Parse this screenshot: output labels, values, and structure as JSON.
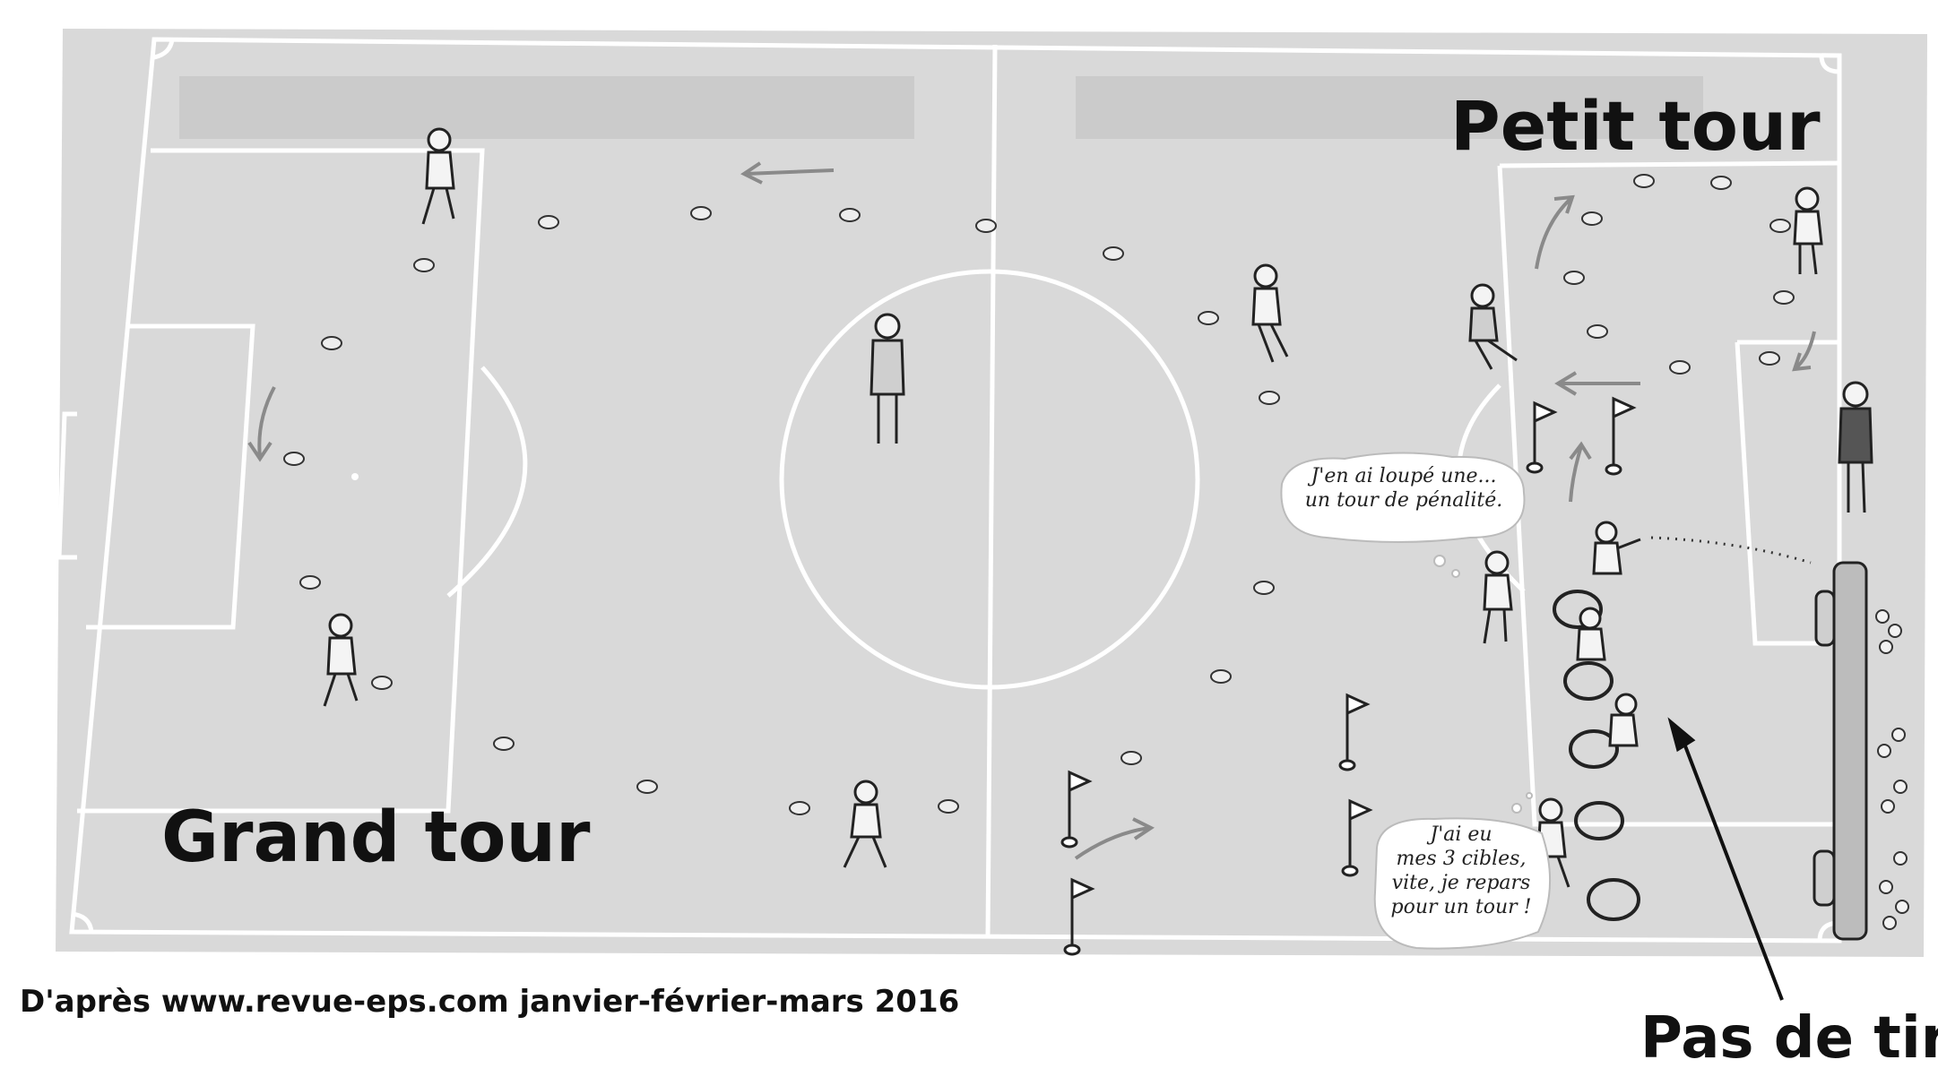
{
  "labels": {
    "petit_tour": "Petit tour",
    "grand_tour": "Grand tour",
    "pas_de_tir": "Pas de tir",
    "source": "D'après www.revue-eps.com janvier-février-mars 2016"
  },
  "bubbles": {
    "penalty": [
      "J'en ai loupé une...",
      "un tour de pénalité."
    ],
    "success": [
      "J'ai eu",
      "mes 3 cibles,",
      "vite, je repars",
      "pour un tour !"
    ]
  },
  "colors": {
    "pitch": "#d9d9d9",
    "lines": "#ffffff",
    "ink": "#333333",
    "arrow": "#111111"
  }
}
